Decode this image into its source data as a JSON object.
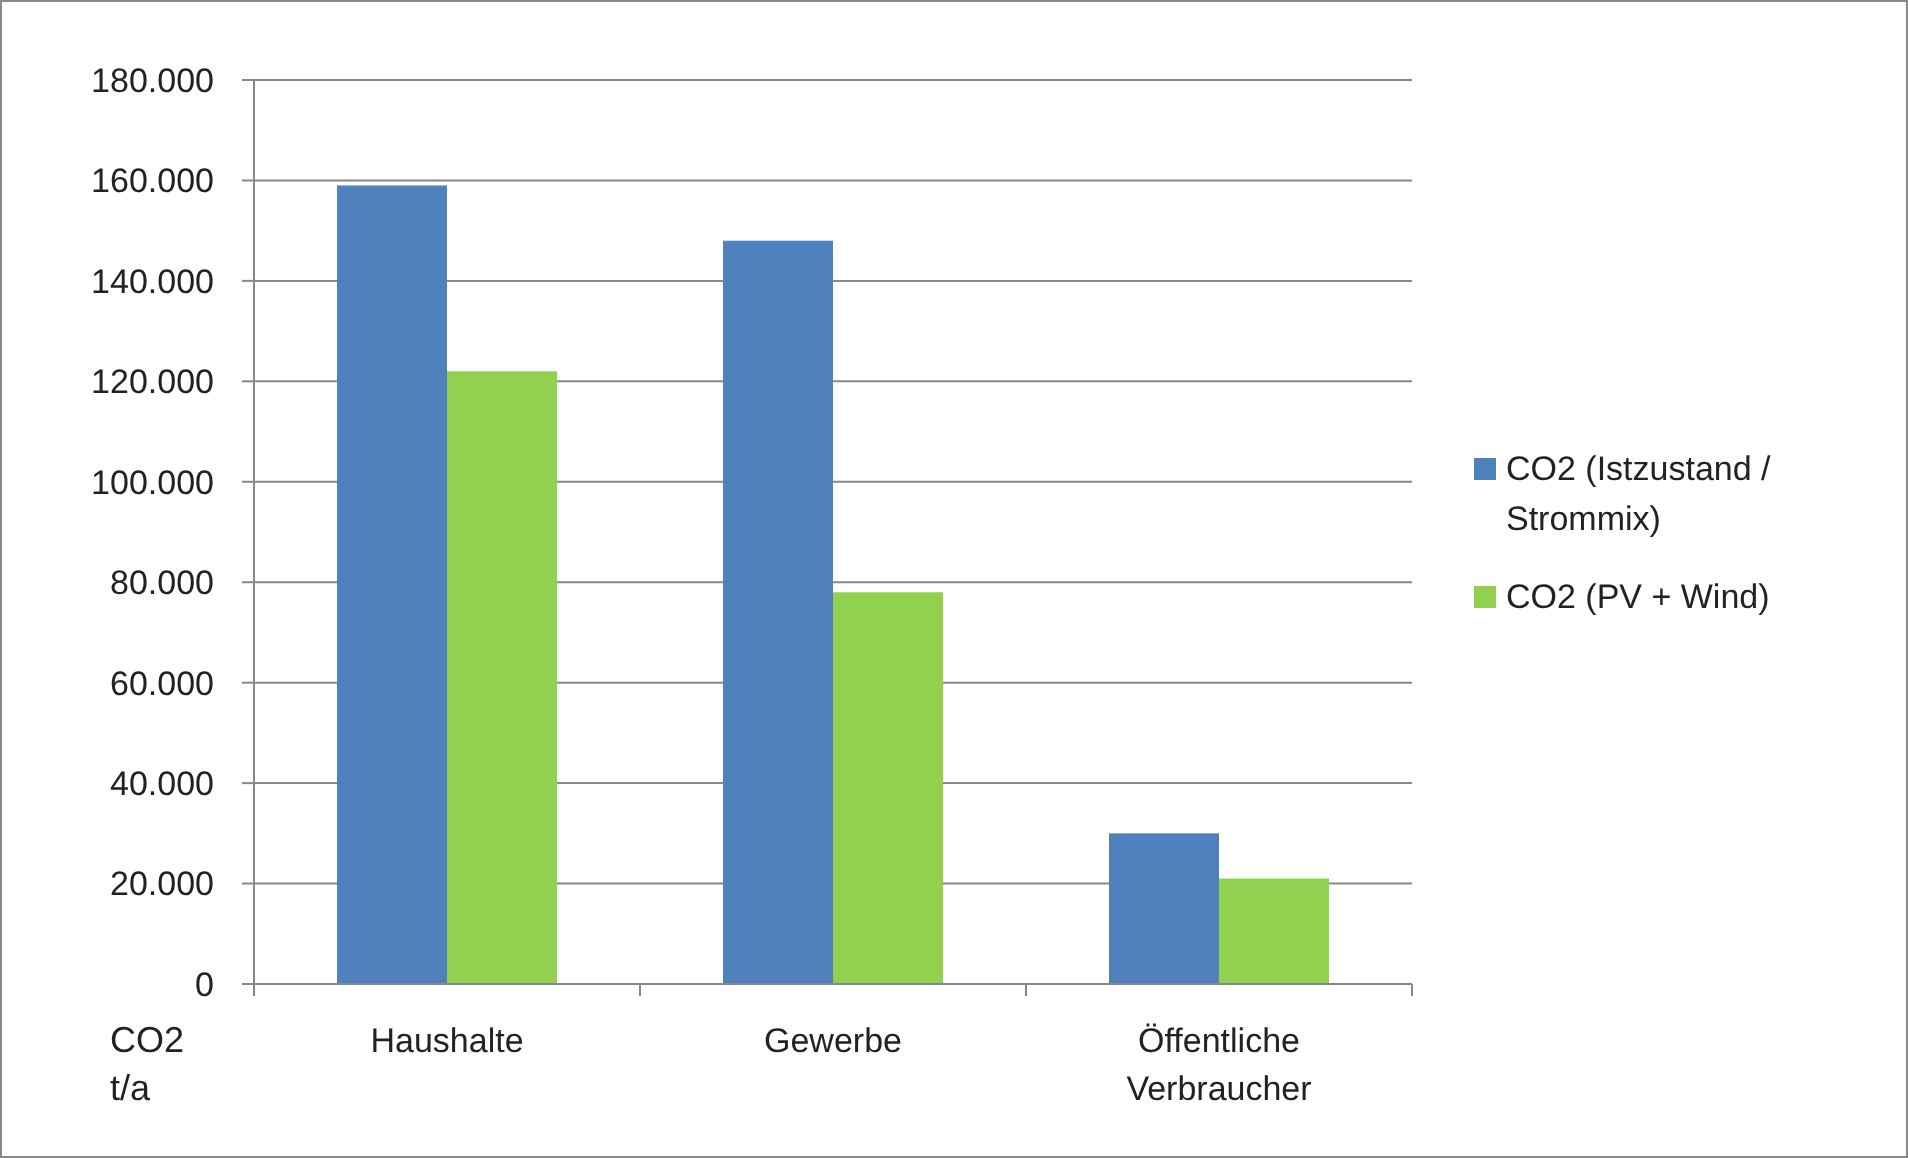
{
  "chart_data": {
    "type": "bar",
    "ylabel": "CO2 t/a",
    "categories": [
      "Haushalte",
      "Gewerbe",
      "Öffentliche Verbraucher"
    ],
    "series": [
      {
        "name": "CO2 (Istzustand / Strommix)",
        "color": "#4f81bd",
        "values": [
          159000,
          148000,
          30000
        ]
      },
      {
        "name": "CO2 (PV + Wind)",
        "color": "#92d050",
        "values": [
          122000,
          78000,
          21000
        ]
      }
    ],
    "ylim": [
      0,
      180000
    ],
    "yticks": [
      0,
      {
        "value": 20000,
        "label": "20.000"
      },
      {
        "value": 40000,
        "label": "40.000"
      },
      {
        "value": 60000,
        "label": "60.000"
      },
      {
        "value": 80000,
        "label": "80.000"
      },
      {
        "value": 100000,
        "label": "100.000"
      },
      {
        "value": 120000,
        "label": "120.000"
      },
      {
        "value": 140000,
        "label": "140.000"
      },
      {
        "value": 160000,
        "label": "160.000"
      },
      {
        "value": 180000,
        "label": "180.000"
      }
    ],
    "grid": "y",
    "legend": "right"
  }
}
